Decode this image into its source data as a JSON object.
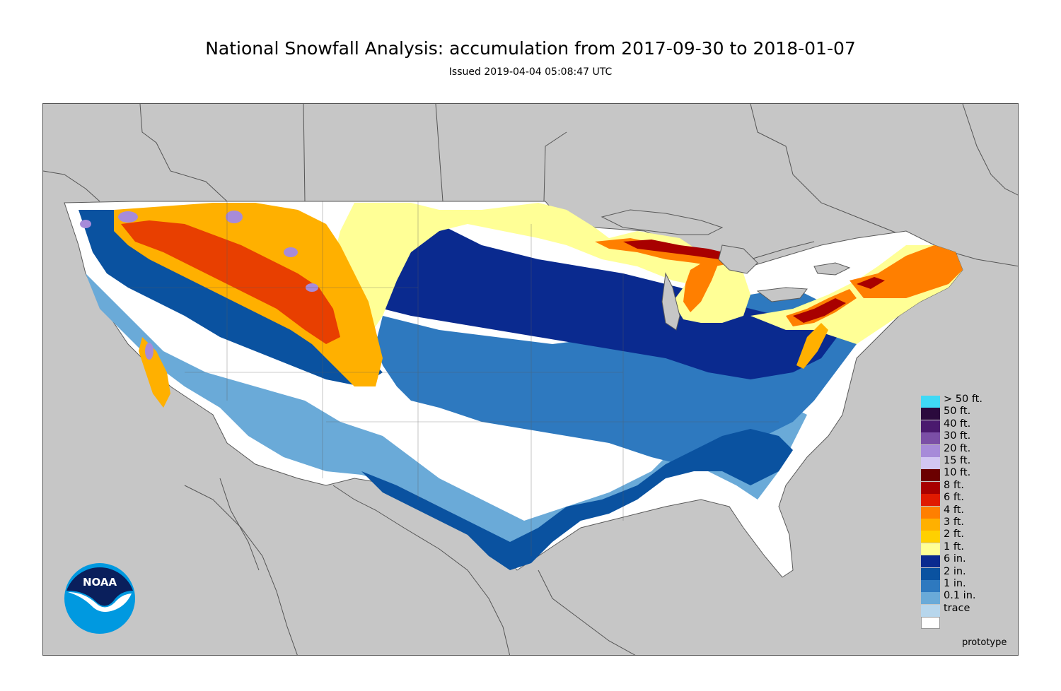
{
  "title": "National Snowfall Analysis: accumulation from 2017-09-30 to 2018-01-07",
  "subtitle": "Issued 2019-04-04 05:08:47 UTC",
  "footer_note": "prototype",
  "logo_text": "NOAA",
  "colors": {
    "background": "#c6c6c6",
    "land_outline": "#5a5a5a",
    "trace": "#ffffff"
  },
  "legend": [
    {
      "label": "> 50 ft.",
      "color": "#3fd9f5"
    },
    {
      "label": "50 ft.",
      "color": "#2b0a3d"
    },
    {
      "label": "40 ft.",
      "color": "#4a1a6e"
    },
    {
      "label": "30 ft.",
      "color": "#7b4fa6"
    },
    {
      "label": "20 ft.",
      "color": "#a78bd9"
    },
    {
      "label": "15 ft.",
      "color": "#d2c6f2"
    },
    {
      "label": "10 ft.",
      "color": "#6b0000"
    },
    {
      "label": "8 ft.",
      "color": "#a80000"
    },
    {
      "label": "6 ft.",
      "color": "#e01a00"
    },
    {
      "label": "4 ft.",
      "color": "#ff7f00"
    },
    {
      "label": "3 ft.",
      "color": "#ffb000"
    },
    {
      "label": "2 ft.",
      "color": "#ffd000"
    },
    {
      "label": "1 ft.",
      "color": "#ffff96"
    },
    {
      "label": "6 in.",
      "color": "#0a2a8f"
    },
    {
      "label": "2 in.",
      "color": "#0a52a0"
    },
    {
      "label": "1 in.",
      "color": "#2e79bf"
    },
    {
      "label": "0.1 in.",
      "color": "#6aaad8"
    },
    {
      "label": "trace",
      "color": "#b7d6ec"
    },
    {
      "label": "",
      "color": "#ffffff"
    }
  ]
}
